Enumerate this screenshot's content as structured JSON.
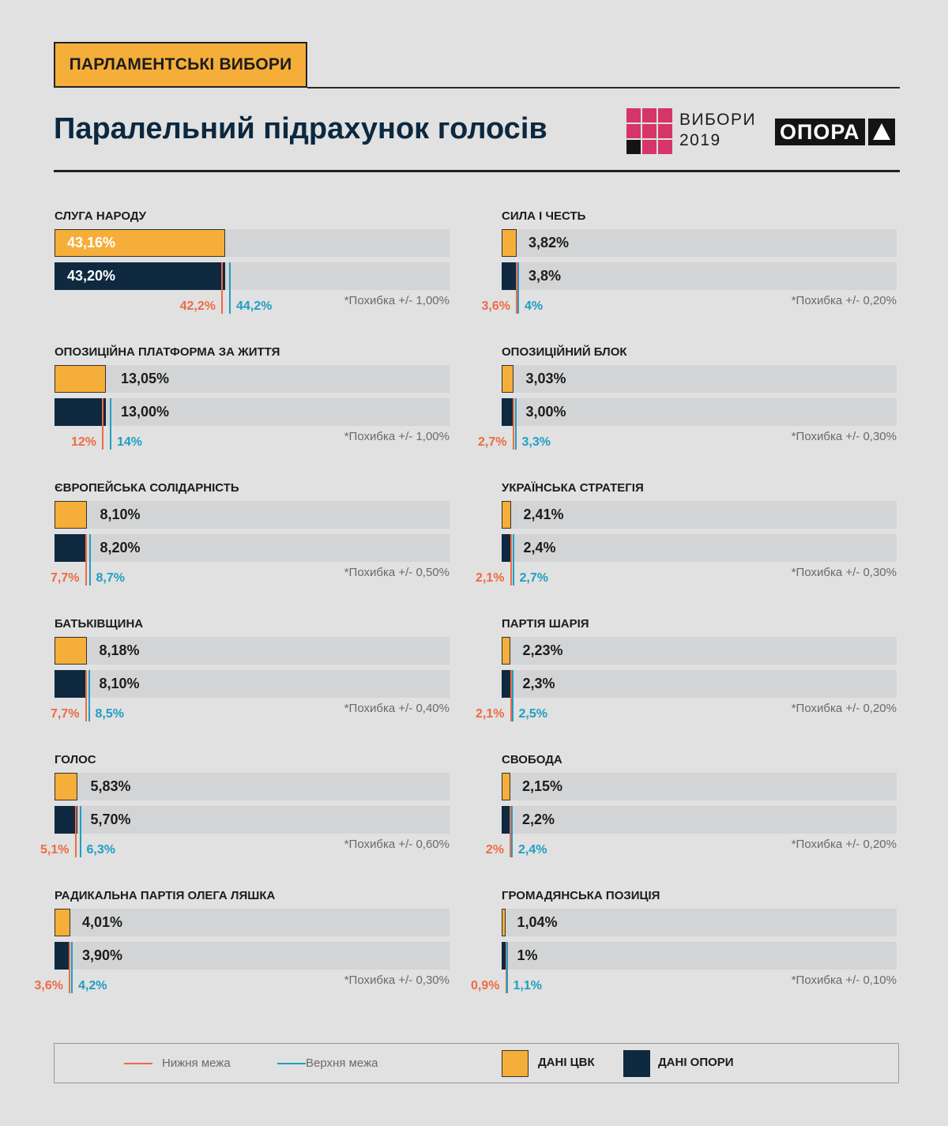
{
  "header": {
    "tag": "ПАРЛАМЕНТСЬКІ ВИБОРИ",
    "title": "Паралельний підрахунок голосів",
    "logo_text": "ВИБОРИ\n2019",
    "brand": "ОПОРА"
  },
  "colors": {
    "cvk": "#f5ae39",
    "opora": "#0e2940",
    "lower": "#ef6a45",
    "upper": "#1f9ec5",
    "track": "#d3d4d5",
    "logo_pink": "#d6356a",
    "logo_black": "#141414"
  },
  "legend": {
    "lower_label": "Нижня межа",
    "upper_label": "Верхня межа",
    "cvk_label": "ДАНІ ЦВК",
    "opora_label": "ДАНІ ОПОРИ"
  },
  "chart_data": {
    "type": "bar",
    "title": "Паралельний підрахунок голосів",
    "xlim": [
      0,
      100
    ],
    "series_names": [
      "ДАНІ ЦВК",
      "ДАНІ ОПОРИ"
    ],
    "parties": [
      {
        "name": "СЛУГА НАРОДУ",
        "cvk": 43.16,
        "cvk_label": "43,16%",
        "opora": 43.2,
        "opora_label": "43,20%",
        "lower": 42.2,
        "lower_label": "42,2%",
        "upper": 44.2,
        "upper_label": "44,2%",
        "error": "*Похибка +/- 1,00%"
      },
      {
        "name": "ОПОЗИЦІЙНА ПЛАТФОРМА ЗА ЖИТТЯ",
        "cvk": 13.05,
        "cvk_label": "13,05%",
        "opora": 13.0,
        "opora_label": "13,00%",
        "lower": 12,
        "lower_label": "12%",
        "upper": 14,
        "upper_label": "14%",
        "error": "*Похибка +/- 1,00%"
      },
      {
        "name": "ЄВРОПЕЙСЬКА СОЛІДАРНІСТЬ",
        "cvk": 8.1,
        "cvk_label": "8,10%",
        "opora": 8.2,
        "opora_label": "8,20%",
        "lower": 7.7,
        "lower_label": "7,7%",
        "upper": 8.7,
        "upper_label": "8,7%",
        "error": "*Похибка +/- 0,50%"
      },
      {
        "name": "БАТЬКІВЩИНА",
        "cvk": 8.18,
        "cvk_label": "8,18%",
        "opora": 8.1,
        "opora_label": "8,10%",
        "lower": 7.7,
        "lower_label": "7,7%",
        "upper": 8.5,
        "upper_label": "8,5%",
        "error": "*Похибка +/- 0,40%"
      },
      {
        "name": "ГОЛОС",
        "cvk": 5.83,
        "cvk_label": "5,83%",
        "opora": 5.7,
        "opora_label": "5,70%",
        "lower": 5.1,
        "lower_label": "5,1%",
        "upper": 6.3,
        "upper_label": "6,3%",
        "error": "*Похибка +/- 0,60%"
      },
      {
        "name": "РАДИКАЛЬНА ПАРТІЯ ОЛЕГА ЛЯШКА",
        "cvk": 4.01,
        "cvk_label": "4,01%",
        "opora": 3.9,
        "opora_label": "3,90%",
        "lower": 3.6,
        "lower_label": "3,6%",
        "upper": 4.2,
        "upper_label": "4,2%",
        "error": "*Похибка +/- 0,30%"
      },
      {
        "name": "СИЛА І ЧЕСТЬ",
        "cvk": 3.82,
        "cvk_label": "3,82%",
        "opora": 3.8,
        "opora_label": "3,8%",
        "lower": 3.6,
        "lower_label": "3,6%",
        "upper": 4,
        "upper_label": "4%",
        "error": "*Похибка +/- 0,20%"
      },
      {
        "name": "ОПОЗИЦІЙНИЙ БЛОК",
        "cvk": 3.03,
        "cvk_label": "3,03%",
        "opora": 3.0,
        "opora_label": "3,00%",
        "lower": 2.7,
        "lower_label": "2,7%",
        "upper": 3.3,
        "upper_label": "3,3%",
        "error": "*Похибка +/- 0,30%"
      },
      {
        "name": "УКРАЇНСЬКА СТРАТЕГІЯ",
        "cvk": 2.41,
        "cvk_label": "2,41%",
        "opora": 2.4,
        "opora_label": "2,4%",
        "lower": 2.1,
        "lower_label": "2,1%",
        "upper": 2.7,
        "upper_label": "2,7%",
        "error": "*Похибка +/- 0,30%"
      },
      {
        "name": "ПАРТІЯ ШАРІЯ",
        "cvk": 2.23,
        "cvk_label": "2,23%",
        "opora": 2.3,
        "opora_label": "2,3%",
        "lower": 2.1,
        "lower_label": "2,1%",
        "upper": 2.5,
        "upper_label": "2,5%",
        "error": "*Похибка +/- 0,20%"
      },
      {
        "name": "СВОБОДА",
        "cvk": 2.15,
        "cvk_label": "2,15%",
        "opora": 2.2,
        "opora_label": "2,2%",
        "lower": 2,
        "lower_label": "2%",
        "upper": 2.4,
        "upper_label": "2,4%",
        "error": "*Похибка +/- 0,20%"
      },
      {
        "name": "ГРОМАДЯНСЬКА ПОЗИЦІЯ",
        "cvk": 1.04,
        "cvk_label": "1,04%",
        "opora": 1,
        "opora_label": "1%",
        "lower": 0.9,
        "lower_label": "0,9%",
        "upper": 1.1,
        "upper_label": "1,1%",
        "error": "*Похибка +/- 0,10%"
      }
    ]
  }
}
